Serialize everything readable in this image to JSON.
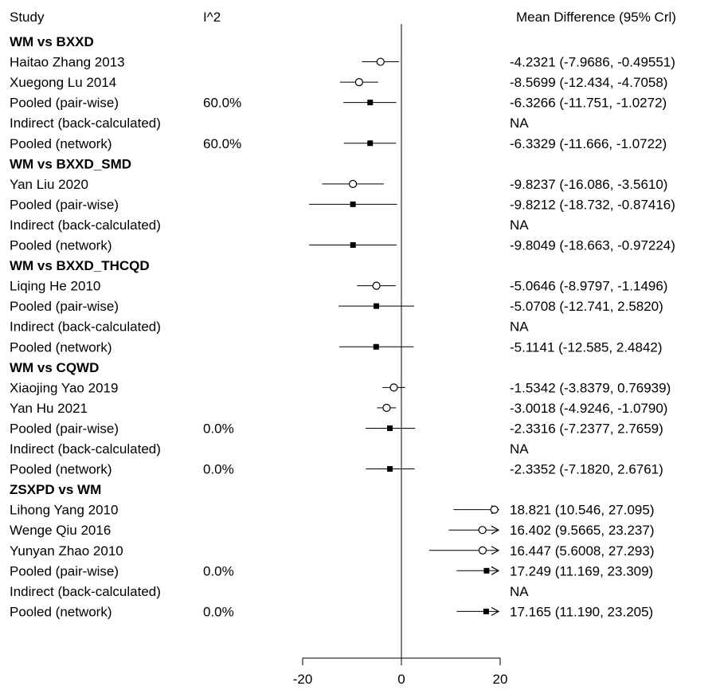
{
  "chart_data": {
    "type": "forest",
    "headers": {
      "study": "Study",
      "i2": "I^2",
      "effect": "Mean Difference (95% Crl)"
    },
    "xlim": [
      -20,
      20
    ],
    "ticks": [
      "-20",
      "0",
      "20"
    ],
    "tick_values": [
      -20,
      0,
      20
    ],
    "reference_line": 0,
    "colors": {
      "ink": "#000000",
      "background": "#ffffff"
    },
    "groups": [
      {
        "title": "WM vs BXXD",
        "rows": [
          {
            "label": "Haitao Zhang 2013",
            "i2": "",
            "ci_text": "-4.2321 (-7.9686, -0.49551)",
            "est": -4.2321,
            "lo": -7.9686,
            "hi": -0.49551,
            "marker": "circle"
          },
          {
            "label": "Xuegong Lu 2014",
            "i2": "",
            "ci_text": "-8.5699 (-12.434, -4.7058)",
            "est": -8.5699,
            "lo": -12.434,
            "hi": -4.7058,
            "marker": "circle"
          },
          {
            "label": "Pooled (pair-wise)",
            "i2": "60.0%",
            "ci_text": "-6.3266 (-11.751, -1.0272)",
            "est": -6.3266,
            "lo": -11.751,
            "hi": -1.0272,
            "marker": "square"
          },
          {
            "label": "Indirect (back-calculated)",
            "i2": "",
            "ci_text": "NA",
            "est": null,
            "lo": null,
            "hi": null,
            "marker": "none"
          },
          {
            "label": "Pooled (network)",
            "i2": "60.0%",
            "ci_text": "-6.3329 (-11.666, -1.0722)",
            "est": -6.3329,
            "lo": -11.666,
            "hi": -1.0722,
            "marker": "square"
          }
        ]
      },
      {
        "title": "WM vs BXXD_SMD",
        "rows": [
          {
            "label": "Yan Liu 2020",
            "i2": "",
            "ci_text": "-9.8237 (-16.086, -3.5610)",
            "est": -9.8237,
            "lo": -16.086,
            "hi": -3.561,
            "marker": "circle"
          },
          {
            "label": "Pooled (pair-wise)",
            "i2": "",
            "ci_text": "-9.8212 (-18.732, -0.87416)",
            "est": -9.8212,
            "lo": -18.732,
            "hi": -0.87416,
            "marker": "square"
          },
          {
            "label": "Indirect (back-calculated)",
            "i2": "",
            "ci_text": "NA",
            "est": null,
            "lo": null,
            "hi": null,
            "marker": "none"
          },
          {
            "label": "Pooled (network)",
            "i2": "",
            "ci_text": "-9.8049 (-18.663, -0.97224)",
            "est": -9.8049,
            "lo": -18.663,
            "hi": -0.97224,
            "marker": "square"
          }
        ]
      },
      {
        "title": "WM vs BXXD_THCQD",
        "rows": [
          {
            "label": "Liqing He 2010",
            "i2": "",
            "ci_text": "-5.0646 (-8.9797, -1.1496)",
            "est": -5.0646,
            "lo": -8.9797,
            "hi": -1.1496,
            "marker": "circle"
          },
          {
            "label": "Pooled (pair-wise)",
            "i2": "",
            "ci_text": "-5.0708 (-12.741, 2.5820)",
            "est": -5.0708,
            "lo": -12.741,
            "hi": 2.582,
            "marker": "square"
          },
          {
            "label": "Indirect (back-calculated)",
            "i2": "",
            "ci_text": "NA",
            "est": null,
            "lo": null,
            "hi": null,
            "marker": "none"
          },
          {
            "label": "Pooled (network)",
            "i2": "",
            "ci_text": "-5.1141 (-12.585, 2.4842)",
            "est": -5.1141,
            "lo": -12.585,
            "hi": 2.4842,
            "marker": "square"
          }
        ]
      },
      {
        "title": "WM vs CQWD",
        "rows": [
          {
            "label": "Xiaojing Yao 2019",
            "i2": "",
            "ci_text": "-1.5342 (-3.8379, 0.76939)",
            "est": -1.5342,
            "lo": -3.8379,
            "hi": 0.76939,
            "marker": "circle"
          },
          {
            "label": "Yan Hu 2021",
            "i2": "",
            "ci_text": "-3.0018 (-4.9246, -1.0790)",
            "est": -3.0018,
            "lo": -4.9246,
            "hi": -1.079,
            "marker": "circle"
          },
          {
            "label": "Pooled (pair-wise)",
            "i2": "0.0%",
            "ci_text": "-2.3316 (-7.2377, 2.7659)",
            "est": -2.3316,
            "lo": -7.2377,
            "hi": 2.7659,
            "marker": "square"
          },
          {
            "label": "Indirect (back-calculated)",
            "i2": "",
            "ci_text": "NA",
            "est": null,
            "lo": null,
            "hi": null,
            "marker": "none"
          },
          {
            "label": "Pooled (network)",
            "i2": "0.0%",
            "ci_text": "-2.3352 (-7.1820, 2.6761)",
            "est": -2.3352,
            "lo": -7.182,
            "hi": 2.6761,
            "marker": "square"
          }
        ]
      },
      {
        "title": "ZSXPD vs WM",
        "rows": [
          {
            "label": "Lihong Yang 2010",
            "i2": "",
            "ci_text": "18.821 (10.546, 27.095)",
            "est": 18.821,
            "lo": 10.546,
            "hi": 27.095,
            "marker": "circle"
          },
          {
            "label": "Wenge Qiu 2016",
            "i2": "",
            "ci_text": "16.402 (9.5665, 23.237)",
            "est": 16.402,
            "lo": 9.5665,
            "hi": 23.237,
            "marker": "circle"
          },
          {
            "label": "Yunyan Zhao 2010",
            "i2": "",
            "ci_text": "16.447 (5.6008, 27.293)",
            "est": 16.447,
            "lo": 5.6008,
            "hi": 27.293,
            "marker": "circle"
          },
          {
            "label": "Pooled (pair-wise)",
            "i2": "0.0%",
            "ci_text": "17.249 (11.169, 23.309)",
            "est": 17.249,
            "lo": 11.169,
            "hi": 23.309,
            "marker": "square"
          },
          {
            "label": "Indirect (back-calculated)",
            "i2": "",
            "ci_text": "NA",
            "est": null,
            "lo": null,
            "hi": null,
            "marker": "none"
          },
          {
            "label": "Pooled (network)",
            "i2": "0.0%",
            "ci_text": "17.165 (11.190, 23.205)",
            "est": 17.165,
            "lo": 11.19,
            "hi": 23.205,
            "marker": "square"
          }
        ]
      }
    ]
  }
}
